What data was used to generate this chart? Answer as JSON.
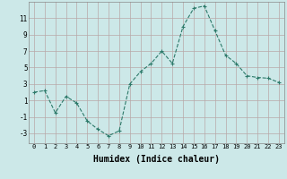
{
  "x": [
    0,
    1,
    2,
    3,
    4,
    5,
    6,
    7,
    8,
    9,
    10,
    11,
    12,
    13,
    14,
    15,
    16,
    17,
    18,
    19,
    20,
    21,
    22,
    23
  ],
  "y": [
    2.0,
    2.2,
    -0.5,
    1.5,
    0.7,
    -1.5,
    -2.5,
    -3.3,
    -2.7,
    3.0,
    4.5,
    5.5,
    7.0,
    5.5,
    10.0,
    12.2,
    12.5,
    9.5,
    6.5,
    5.5,
    4.0,
    3.8,
    3.7,
    3.2
  ],
  "xlabel": "Humidex (Indice chaleur)",
  "xlim": [
    -0.5,
    23.5
  ],
  "ylim": [
    -4.2,
    13
  ],
  "yticks": [
    -3,
    -1,
    1,
    3,
    5,
    7,
    9,
    11
  ],
  "xticks": [
    0,
    1,
    2,
    3,
    4,
    5,
    6,
    7,
    8,
    9,
    10,
    11,
    12,
    13,
    14,
    15,
    16,
    17,
    18,
    19,
    20,
    21,
    22,
    23
  ],
  "line_color": "#2d7a6a",
  "marker": "+",
  "marker_size": 3,
  "bg_color": "#cce8e8",
  "grid_color": "#b8a8a8",
  "xlabel_fontsize": 7,
  "tick_fontsize": 5,
  "ytick_fontsize": 5.5
}
